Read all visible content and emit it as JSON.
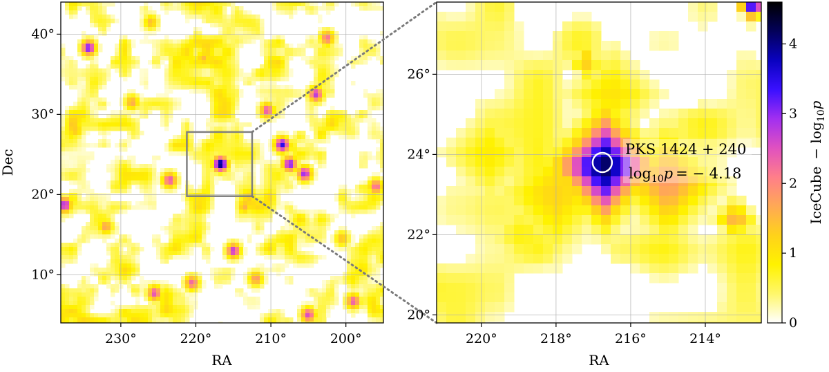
{
  "chart_data": [
    {
      "type": "heatmap",
      "panel": "left",
      "xlabel": "RA",
      "ylabel": "Dec",
      "xlim": [
        238,
        195
      ],
      "ylim": [
        4,
        44
      ],
      "xticks": [
        {
          "value": 230,
          "label": "230°"
        },
        {
          "value": 220,
          "label": "220°"
        },
        {
          "value": 210,
          "label": "210°"
        },
        {
          "value": 200,
          "label": "200°"
        }
      ],
      "yticks": [
        {
          "value": 10,
          "label": "10°"
        },
        {
          "value": 20,
          "label": "20°"
        },
        {
          "value": 30,
          "label": "30°"
        },
        {
          "value": 40,
          "label": "40°"
        }
      ],
      "grid": true,
      "zoom_box": {
        "ra": [
          221.2,
          212.5
        ],
        "dec": [
          19.8,
          27.8
        ]
      },
      "hotspots": [
        {
          "ra": 216.7,
          "dec": 23.8,
          "value": 4.18
        },
        {
          "ra": 208.5,
          "dec": 26.2,
          "value": 3.5
        },
        {
          "ra": 207.5,
          "dec": 23.8,
          "value": 3.2
        },
        {
          "ra": 205.5,
          "dec": 22.6,
          "value": 3.0
        },
        {
          "ra": 234.3,
          "dec": 38.3,
          "value": 3.2
        },
        {
          "ra": 204.0,
          "dec": 32.5,
          "value": 2.8
        },
        {
          "ra": 215.0,
          "dec": 13.0,
          "value": 2.8
        },
        {
          "ra": 237.5,
          "dec": 18.7,
          "value": 3.0
        },
        {
          "ra": 225.5,
          "dec": 7.7,
          "value": 2.5
        },
        {
          "ra": 223.5,
          "dec": 21.8,
          "value": 2.5
        },
        {
          "ra": 210.5,
          "dec": 30.5,
          "value": 2.5
        },
        {
          "ra": 199.0,
          "dec": 6.7,
          "value": 2.4
        },
        {
          "ra": 205.0,
          "dec": 5.0,
          "value": 2.6
        },
        {
          "ra": 202.5,
          "dec": 39.5,
          "value": 2.2
        },
        {
          "ra": 196.0,
          "dec": 21.0,
          "value": 2.3
        },
        {
          "ra": 220.5,
          "dec": 9.0,
          "value": 2.3
        },
        {
          "ra": 232.0,
          "dec": 16.0,
          "value": 1.8
        },
        {
          "ra": 228.5,
          "dec": 31.5,
          "value": 1.7
        },
        {
          "ra": 219.0,
          "dec": 37.0,
          "value": 1.5
        },
        {
          "ra": 213.5,
          "dec": 18.5,
          "value": 1.6
        },
        {
          "ra": 212.0,
          "dec": 9.5,
          "value": 1.9
        },
        {
          "ra": 200.5,
          "dec": 14.5,
          "value": 1.5
        },
        {
          "ra": 226.0,
          "dec": 41.5,
          "value": 1.5
        },
        {
          "ra": 236.0,
          "dec": 28.0,
          "value": 1.4
        }
      ]
    },
    {
      "type": "heatmap",
      "panel": "right",
      "xlabel": "RA",
      "ylabel": "",
      "xlim": [
        221.2,
        212.5
      ],
      "ylim": [
        19.8,
        27.8
      ],
      "xticks": [
        {
          "value": 220,
          "label": "220°"
        },
        {
          "value": 218,
          "label": "218°"
        },
        {
          "value": 216,
          "label": "216°"
        },
        {
          "value": 214,
          "label": "214°"
        }
      ],
      "yticks": [
        {
          "value": 20,
          "label": "20°"
        },
        {
          "value": 22,
          "label": "22°"
        },
        {
          "value": 24,
          "label": "24°"
        },
        {
          "value": 26,
          "label": "26°"
        }
      ],
      "grid": true,
      "source": {
        "ra": 216.76,
        "dec": 23.8,
        "name": "PKS 1424 + 240",
        "log10p_label": "= − 4.18",
        "log10p": -4.18
      },
      "colorbar": {
        "label": "IceCube",
        "range": [
          0,
          4.6
        ],
        "ticks": [
          {
            "value": 0,
            "label": "0"
          },
          {
            "value": 1,
            "label": "1"
          },
          {
            "value": 2,
            "label": "2"
          },
          {
            "value": 3,
            "label": "3"
          },
          {
            "value": 4,
            "label": "4"
          }
        ],
        "colors": [
          "#ffffff",
          "#fff76b",
          "#fff200",
          "#ffd21a",
          "#ffa955",
          "#ff7e8a",
          "#e051c0",
          "#a22ff0",
          "#3a10ff",
          "#0a02c0",
          "#03015a",
          "#000000"
        ]
      },
      "hotspots": [
        {
          "ra": 216.7,
          "dec": 23.7,
          "value": 4.18,
          "spread": 0.85
        },
        {
          "ra": 215.0,
          "dec": 23.3,
          "value": 1.8,
          "spread": 0.9
        },
        {
          "ra": 218.0,
          "dec": 23.0,
          "value": 1.2,
          "spread": 1.0
        },
        {
          "ra": 216.5,
          "dec": 25.5,
          "value": 1.0,
          "spread": 0.8
        },
        {
          "ra": 219.8,
          "dec": 24.0,
          "value": 0.9,
          "spread": 0.8
        },
        {
          "ra": 213.2,
          "dec": 22.4,
          "value": 1.6,
          "spread": 0.35
        },
        {
          "ra": 217.2,
          "dec": 26.3,
          "value": 1.3,
          "spread": 0.3
        },
        {
          "ra": 212.7,
          "dec": 27.7,
          "value": 3.5,
          "spread": 0.25
        },
        {
          "ra": 218.9,
          "dec": 22.0,
          "value": 0.8,
          "spread": 0.6
        },
        {
          "ra": 214.0,
          "dec": 24.5,
          "value": 0.7,
          "spread": 0.6
        }
      ]
    }
  ]
}
